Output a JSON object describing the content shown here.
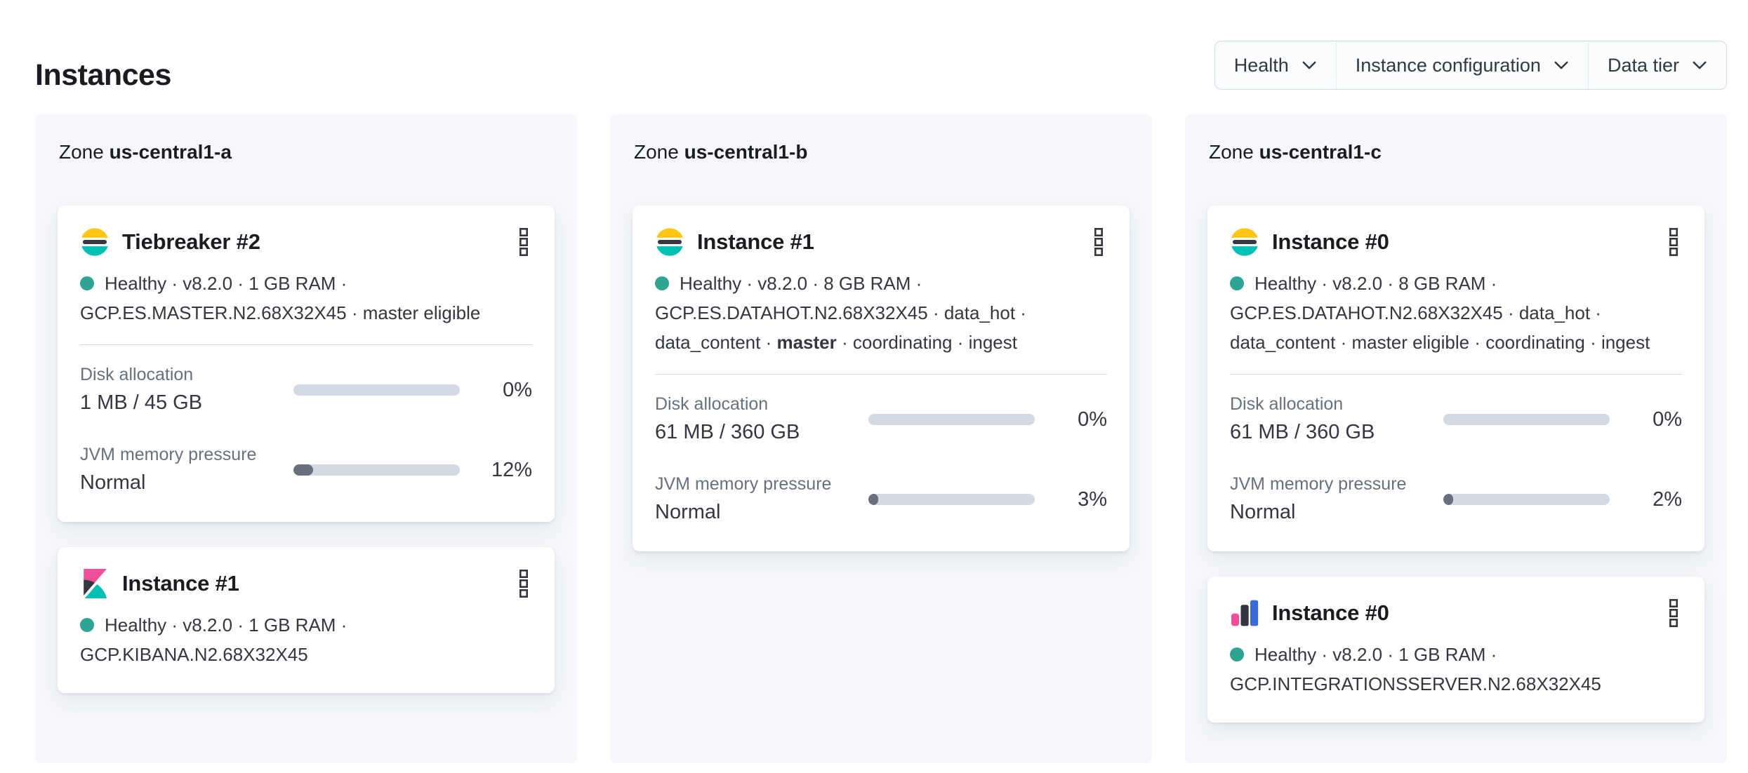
{
  "page": {
    "title": "Instances"
  },
  "filter_bar": {
    "filters": [
      {
        "label": "Health"
      },
      {
        "label": "Instance configuration"
      },
      {
        "label": "Data tier"
      }
    ]
  },
  "zones": [
    {
      "label": "Zone",
      "name": "us-central1-a",
      "cards": [
        {
          "logo": "elasticsearch-logo",
          "title": "Tiebreaker #2",
          "meta_lines": [
            {
              "dot": true,
              "segments": [
                {
                  "text": "Healthy · v8.2.0 · 1 GB RAM ·"
                }
              ]
            },
            {
              "segments": [
                {
                  "text": "GCP.ES.MASTER.N2.68X32X45 · master eligible"
                }
              ]
            }
          ],
          "metrics": [
            {
              "label": "Disk allocation",
              "value": "1 MB / 45 GB",
              "percent": "0%",
              "fill_pct": 0
            },
            {
              "label": "JVM memory pressure",
              "value": "Normal",
              "percent": "12%",
              "fill_pct": 12
            }
          ]
        },
        {
          "logo": "kibana-logo",
          "title": "Instance #1",
          "meta_lines": [
            {
              "dot": true,
              "segments": [
                {
                  "text": "Healthy · v8.2.0 · 1 GB RAM ·"
                }
              ]
            },
            {
              "segments": [
                {
                  "text": "GCP.KIBANA.N2.68X32X45"
                }
              ]
            }
          ],
          "metrics": []
        }
      ]
    },
    {
      "label": "Zone",
      "name": "us-central1-b",
      "cards": [
        {
          "logo": "elasticsearch-logo",
          "title": "Instance #1",
          "meta_lines": [
            {
              "dot": true,
              "segments": [
                {
                  "text": "Healthy · v8.2.0 · 8 GB RAM ·"
                }
              ]
            },
            {
              "segments": [
                {
                  "text": "GCP.ES.DATAHOT.N2.68X32X45 · data_hot ·"
                }
              ]
            },
            {
              "segments": [
                {
                  "text": "data_content · "
                },
                {
                  "text": "master",
                  "bold": true
                },
                {
                  "text": " · coordinating · ingest"
                }
              ]
            }
          ],
          "metrics": [
            {
              "label": "Disk allocation",
              "value": "61 MB / 360 GB",
              "percent": "0%",
              "fill_pct": 0
            },
            {
              "label": "JVM memory pressure",
              "value": "Normal",
              "percent": "3%",
              "fill_pct": 3
            }
          ]
        }
      ]
    },
    {
      "label": "Zone",
      "name": "us-central1-c",
      "cards": [
        {
          "logo": "elasticsearch-logo",
          "title": "Instance #0",
          "meta_lines": [
            {
              "dot": true,
              "segments": [
                {
                  "text": "Healthy · v8.2.0 · 8 GB RAM ·"
                }
              ]
            },
            {
              "segments": [
                {
                  "text": "GCP.ES.DATAHOT.N2.68X32X45 · data_hot ·"
                }
              ]
            },
            {
              "segments": [
                {
                  "text": "data_content · master eligible · coordinating · ingest"
                }
              ]
            }
          ],
          "metrics": [
            {
              "label": "Disk allocation",
              "value": "61 MB / 360 GB",
              "percent": "0%",
              "fill_pct": 0
            },
            {
              "label": "JVM memory pressure",
              "value": "Normal",
              "percent": "2%",
              "fill_pct": 2
            }
          ]
        },
        {
          "logo": "integrations-server-logo",
          "title": "Instance #0",
          "meta_lines": [
            {
              "dot": true,
              "segments": [
                {
                  "text": "Healthy · v8.2.0 · 1 GB RAM ·"
                }
              ]
            },
            {
              "segments": [
                {
                  "text": "GCP.INTEGRATIONSSERVER.N2.68X32X45"
                }
              ]
            }
          ],
          "metrics": []
        }
      ]
    }
  ],
  "icons": {
    "card_menu": "boxes-vertical-icon",
    "filter_dropdown": "chevron-down-icon",
    "health_status": "health-dot"
  },
  "colors": {
    "elastic_yellow": "#FEC514",
    "elastic_dark": "#343741",
    "elastic_teal": "#00BFB3",
    "kibana_pink": "#F04E98",
    "integrations_blue": "#3B6BDB",
    "health_teal": "#2EA593",
    "progress_track": "#D3DAE6",
    "progress_fill": "#69707D",
    "zone_background": "#F5F7FA",
    "text_dark": "#1A1C21",
    "text_body": "#343741",
    "text_subdued": "#69707D",
    "border": "#D3DAE6"
  }
}
